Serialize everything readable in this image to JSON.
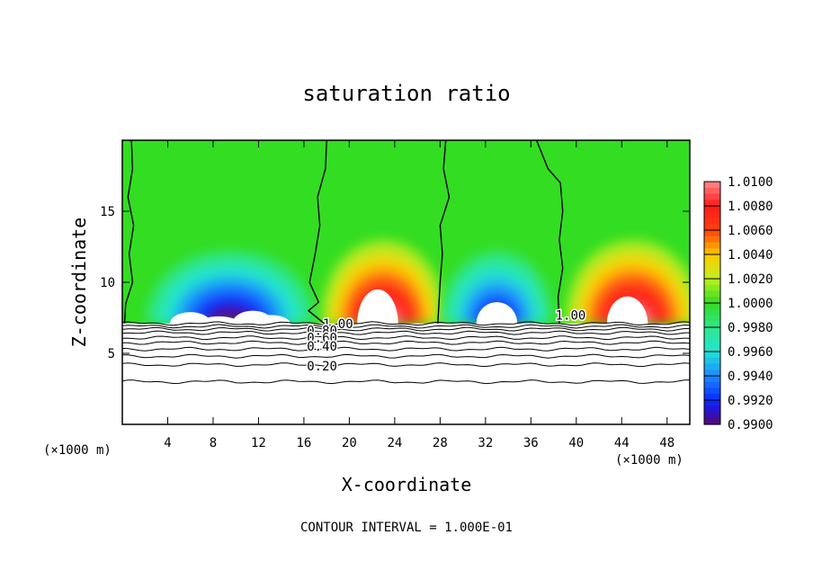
{
  "chart_data": {
    "type": "heatmap",
    "title": "saturation ratio",
    "xlabel": "X-coordinate",
    "ylabel": "Z-coordinate",
    "x_unit_left": "(×1000 m)",
    "x_unit_right": "(×1000 m)",
    "xlim": [
      0,
      50
    ],
    "ylim": [
      0,
      20
    ],
    "x_ticks": [
      4,
      8,
      12,
      16,
      20,
      24,
      28,
      32,
      36,
      40,
      44,
      48
    ],
    "y_ticks": [
      5,
      10,
      15
    ],
    "footer": "CONTOUR INTERVAL = 1.000E-01",
    "colorbar": {
      "labels": [
        "1.0100",
        "1.0080",
        "1.0060",
        "1.0040",
        "1.0020",
        "1.0000",
        "0.9980",
        "0.9960",
        "0.9940",
        "0.9920",
        "0.9900"
      ],
      "min": 0.99,
      "max": 1.01
    },
    "contour_labels": [
      {
        "text": "1.00",
        "x": 19.0,
        "z": 7.1
      },
      {
        "text": "0.80",
        "x": 17.6,
        "z": 6.6
      },
      {
        "text": "0.60",
        "x": 17.6,
        "z": 6.1
      },
      {
        "text": "0.40",
        "x": 17.6,
        "z": 5.5
      },
      {
        "text": "0.20",
        "x": 17.6,
        "z": 4.1
      },
      {
        "text": "1.00",
        "x": 39.5,
        "z": 7.7
      }
    ],
    "lower_contour_levels": [
      0.1,
      0.2,
      0.3,
      0.4,
      0.5,
      0.6,
      0.7,
      0.8,
      0.9,
      1.0
    ],
    "cloud_base_z": 7.1,
    "regions": [
      {
        "kind": "subsaturated",
        "x0": 1,
        "x1": 16,
        "center": 9.5,
        "peak_z": 14,
        "core": 0.99
      },
      {
        "kind": "supersaturated",
        "x0": 17,
        "x1": 28,
        "center": 23,
        "peak_z": 15,
        "core": 1.01
      },
      {
        "kind": "subsaturated",
        "x0": 28,
        "x1": 38,
        "center": 33,
        "peak_z": 14,
        "core": 0.991
      },
      {
        "kind": "supersaturated",
        "x0": 38,
        "x1": 50,
        "center": 45,
        "peak_z": 15,
        "core": 1.01
      }
    ]
  },
  "colors": {
    "background_field": "#33dd22",
    "white_clouds": "#ffffff"
  }
}
